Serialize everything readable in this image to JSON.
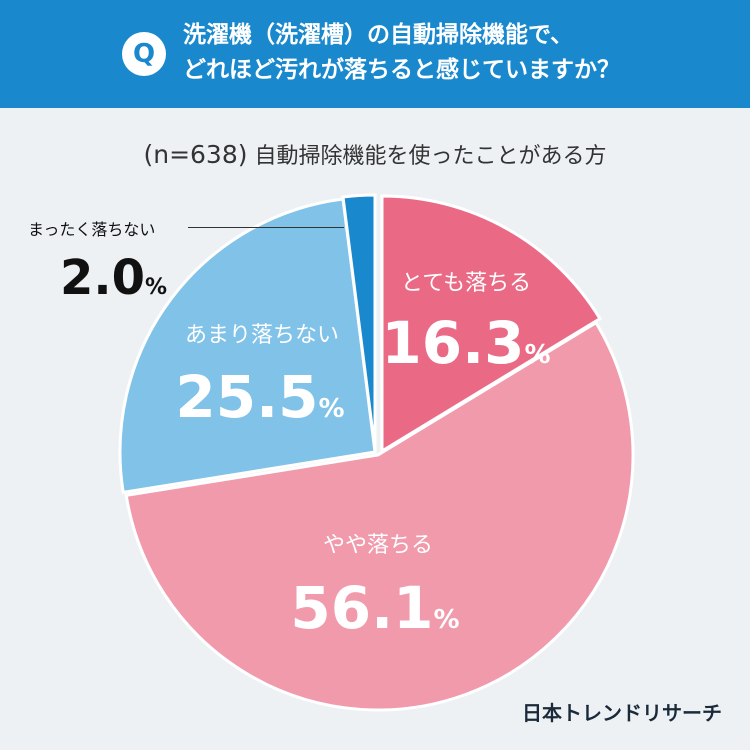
{
  "header": {
    "badge": "Q",
    "question_line1": "洗濯機（洗濯槽）の自動掃除機能で、",
    "question_line2": "どれほど汚れが落ちると感じていますか？"
  },
  "subtitle": {
    "n": "(n=638)",
    "text": "自動掃除機能を使ったことがある方"
  },
  "chart_data": {
    "type": "pie",
    "categories": [
      "とても落ちる",
      "やや落ちる",
      "あまり落ちない",
      "まったく落ちない"
    ],
    "values": [
      16.3,
      56.1,
      25.5,
      2.0
    ],
    "unit": "%",
    "colors": [
      "#ea6a86",
      "#f09aac",
      "#80c2e8",
      "#1a88cc"
    ],
    "value_labels": [
      "16.3",
      "56.1",
      "25.5",
      "2.0"
    ]
  },
  "brand": "日本トレンドリサーチ"
}
